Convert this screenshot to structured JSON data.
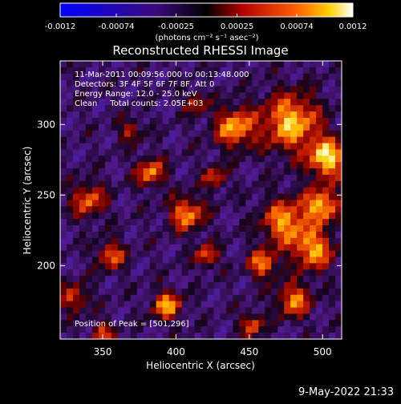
{
  "chart_data": {
    "type": "heatmap",
    "title": "Reconstructed RHESSI Image",
    "xlabel": "Heliocentric X (arcsec)",
    "ylabel": "Heliocentric Y (arcsec)",
    "xlim": [
      321,
      513
    ],
    "ylim": [
      148,
      345
    ],
    "x_ticks": [
      350,
      400,
      450,
      500
    ],
    "y_ticks": [
      200,
      250,
      300
    ],
    "grid": false,
    "colorbar": {
      "tick_labels": [
        "-0.0012",
        "-0.00074",
        "-0.00025",
        "0.00025",
        "0.00074",
        "0.0012"
      ],
      "range": [
        -0.0012,
        0.0012
      ],
      "unit_label": "(photons cm⁻² s⁻¹ asec⁻²)",
      "placement": "top"
    },
    "annotations": {
      "time_range": "11-Mar-2011 00:09:56.000 to 00:13:48.000",
      "detectors": "Detectors: 3F 4F 5F 6F 7F 8F, Att 0",
      "energy_range": "Energy Range: 12.0 - 25.0 keV",
      "clean_total": "Clean     Total counts: 2.05E+03",
      "peak_position": "Position of Peak = [501,296]"
    }
  },
  "footer": {
    "date": "9-May-2022 21:33"
  },
  "colors": {
    "background": "#000000",
    "foreground": "#ffffff",
    "colormap_low": "#0000ff",
    "colormap_high": "#ffffff"
  }
}
